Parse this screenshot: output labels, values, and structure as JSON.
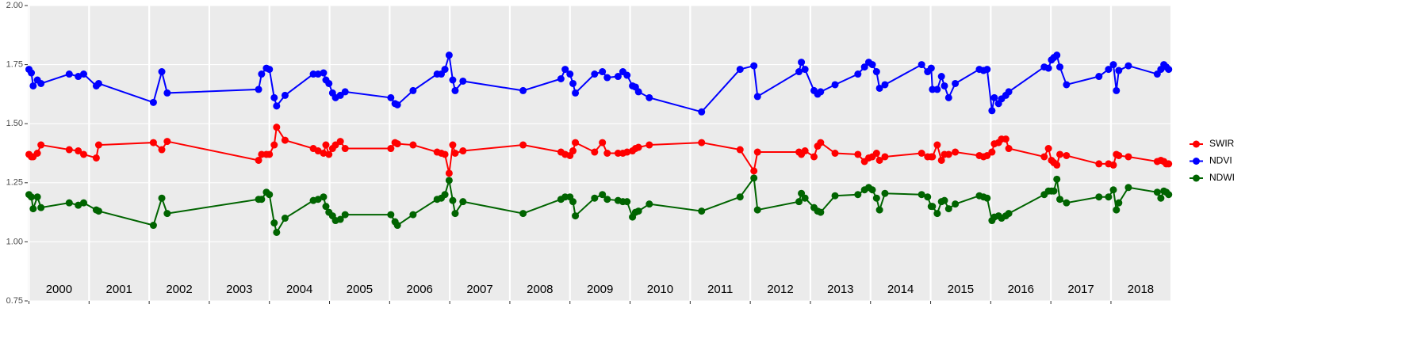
{
  "chart_data": {
    "type": "line",
    "x": [
      2000.0,
      2000.04,
      2000.07,
      2000.14,
      2000.2,
      2000.67,
      2000.82,
      2000.91,
      2001.12,
      2001.16,
      2002.07,
      2002.21,
      2002.3,
      2003.82,
      2003.87,
      2003.95,
      2004.0,
      2004.08,
      2004.12,
      2004.26,
      2004.73,
      2004.81,
      2004.9,
      2004.94,
      2004.99,
      2005.05,
      2005.1,
      2005.18,
      2005.26,
      2006.02,
      2006.09,
      2006.13,
      2006.39,
      2006.79,
      2006.86,
      2006.92,
      2006.99,
      2007.05,
      2007.09,
      2007.22,
      2008.22,
      2008.85,
      2008.92,
      2009.0,
      2009.05,
      2009.09,
      2009.41,
      2009.54,
      2009.62,
      2009.8,
      2009.88,
      2009.95,
      2010.04,
      2010.09,
      2010.14,
      2010.32,
      2011.19,
      2011.83,
      2012.06,
      2012.12,
      2012.81,
      2012.85,
      2012.91,
      2013.06,
      2013.12,
      2013.17,
      2013.41,
      2013.79,
      2013.9,
      2013.97,
      2014.03,
      2014.1,
      2014.15,
      2014.24,
      2014.85,
      2014.95,
      2015.01,
      2015.03,
      2015.11,
      2015.18,
      2015.23,
      2015.3,
      2015.41,
      2015.81,
      2015.88,
      2015.94,
      2016.02,
      2016.06,
      2016.13,
      2016.18,
      2016.25,
      2016.3,
      2016.89,
      2016.96,
      2017.01,
      2017.05,
      2017.1,
      2017.15,
      2017.26,
      2017.8,
      2017.96,
      2018.04,
      2018.09,
      2018.13,
      2018.29,
      2018.77,
      2018.83,
      2018.88,
      2018.92,
      2018.96
    ],
    "series": [
      {
        "name": "SWIR",
        "color": "#ff0000",
        "values": [
          1.37,
          1.36,
          1.36,
          1.375,
          1.41,
          1.39,
          1.385,
          1.37,
          1.355,
          1.41,
          1.42,
          1.39,
          1.425,
          1.345,
          1.37,
          1.37,
          1.37,
          1.41,
          1.485,
          1.43,
          1.395,
          1.385,
          1.375,
          1.41,
          1.37,
          1.395,
          1.41,
          1.425,
          1.395,
          1.395,
          1.42,
          1.415,
          1.41,
          1.38,
          1.375,
          1.37,
          1.29,
          1.41,
          1.375,
          1.385,
          1.41,
          1.38,
          1.37,
          1.365,
          1.385,
          1.42,
          1.38,
          1.42,
          1.375,
          1.375,
          1.375,
          1.38,
          1.385,
          1.395,
          1.4,
          1.41,
          1.42,
          1.39,
          1.3,
          1.38,
          1.38,
          1.37,
          1.385,
          1.36,
          1.405,
          1.42,
          1.375,
          1.37,
          1.34,
          1.355,
          1.36,
          1.375,
          1.345,
          1.36,
          1.375,
          1.36,
          1.36,
          1.36,
          1.41,
          1.345,
          1.37,
          1.37,
          1.38,
          1.365,
          1.36,
          1.365,
          1.38,
          1.415,
          1.42,
          1.435,
          1.435,
          1.395,
          1.36,
          1.395,
          1.345,
          1.335,
          1.325,
          1.37,
          1.365,
          1.33,
          1.33,
          1.325,
          1.37,
          1.365,
          1.36,
          1.34,
          1.345,
          1.34,
          1.33,
          1.33
        ]
      },
      {
        "name": "NDVI",
        "color": "#0000ff",
        "values": [
          1.73,
          1.715,
          1.66,
          1.685,
          1.67,
          1.71,
          1.7,
          1.71,
          1.66,
          1.67,
          1.59,
          1.72,
          1.63,
          1.645,
          1.71,
          1.735,
          1.73,
          1.61,
          1.575,
          1.62,
          1.71,
          1.71,
          1.715,
          1.685,
          1.67,
          1.63,
          1.61,
          1.62,
          1.635,
          1.61,
          1.585,
          1.58,
          1.64,
          1.71,
          1.71,
          1.73,
          1.79,
          1.685,
          1.64,
          1.68,
          1.64,
          1.69,
          1.73,
          1.71,
          1.67,
          1.63,
          1.71,
          1.72,
          1.695,
          1.7,
          1.72,
          1.705,
          1.66,
          1.655,
          1.635,
          1.61,
          1.55,
          1.73,
          1.745,
          1.615,
          1.72,
          1.76,
          1.73,
          1.64,
          1.625,
          1.635,
          1.665,
          1.71,
          1.74,
          1.76,
          1.75,
          1.72,
          1.65,
          1.665,
          1.75,
          1.72,
          1.735,
          1.645,
          1.645,
          1.7,
          1.66,
          1.61,
          1.67,
          1.73,
          1.725,
          1.73,
          1.555,
          1.61,
          1.585,
          1.605,
          1.62,
          1.635,
          1.74,
          1.735,
          1.77,
          1.78,
          1.79,
          1.74,
          1.665,
          1.7,
          1.73,
          1.75,
          1.64,
          1.725,
          1.745,
          1.71,
          1.73,
          1.75,
          1.74,
          1.73
        ]
      },
      {
        "name": "NDWI",
        "color": "#006400",
        "values": [
          1.2,
          1.19,
          1.14,
          1.19,
          1.145,
          1.165,
          1.155,
          1.165,
          1.135,
          1.13,
          1.07,
          1.185,
          1.12,
          1.18,
          1.18,
          1.21,
          1.2,
          1.08,
          1.04,
          1.1,
          1.175,
          1.18,
          1.19,
          1.15,
          1.125,
          1.11,
          1.09,
          1.095,
          1.115,
          1.115,
          1.085,
          1.07,
          1.115,
          1.18,
          1.185,
          1.2,
          1.26,
          1.175,
          1.12,
          1.17,
          1.12,
          1.18,
          1.19,
          1.19,
          1.17,
          1.11,
          1.185,
          1.2,
          1.18,
          1.175,
          1.17,
          1.17,
          1.105,
          1.125,
          1.13,
          1.16,
          1.13,
          1.19,
          1.27,
          1.135,
          1.17,
          1.205,
          1.185,
          1.145,
          1.13,
          1.125,
          1.195,
          1.2,
          1.22,
          1.23,
          1.22,
          1.185,
          1.135,
          1.205,
          1.2,
          1.19,
          1.15,
          1.15,
          1.12,
          1.17,
          1.175,
          1.14,
          1.16,
          1.195,
          1.19,
          1.185,
          1.09,
          1.105,
          1.11,
          1.1,
          1.11,
          1.12,
          1.2,
          1.215,
          1.215,
          1.215,
          1.265,
          1.18,
          1.165,
          1.19,
          1.19,
          1.22,
          1.135,
          1.165,
          1.23,
          1.21,
          1.185,
          1.215,
          1.21,
          1.2
        ]
      }
    ],
    "xlim": [
      1999.98,
      2018.99
    ],
    "xticks": [
      2000,
      2001,
      2002,
      2003,
      2004,
      2005,
      2006,
      2007,
      2008,
      2009,
      2010,
      2011,
      2012,
      2013,
      2014,
      2015,
      2016,
      2017,
      2018
    ],
    "year_labels": [
      "2000",
      "2001",
      "2002",
      "2003",
      "2004",
      "2005",
      "2006",
      "2007",
      "2008",
      "2009",
      "2010",
      "2011",
      "2012",
      "2013",
      "2014",
      "2015",
      "2016",
      "2017",
      "2018"
    ],
    "ylim": [
      0.75,
      2
    ],
    "yticks": [
      0.75,
      {
        "value": 1,
        "label": "1.00"
      },
      1.25,
      {
        "value": 1.5,
        "label": "1.50"
      },
      1.75,
      {
        "value": 2,
        "label": "2.00"
      }
    ],
    "grid": true,
    "legend": "right"
  }
}
